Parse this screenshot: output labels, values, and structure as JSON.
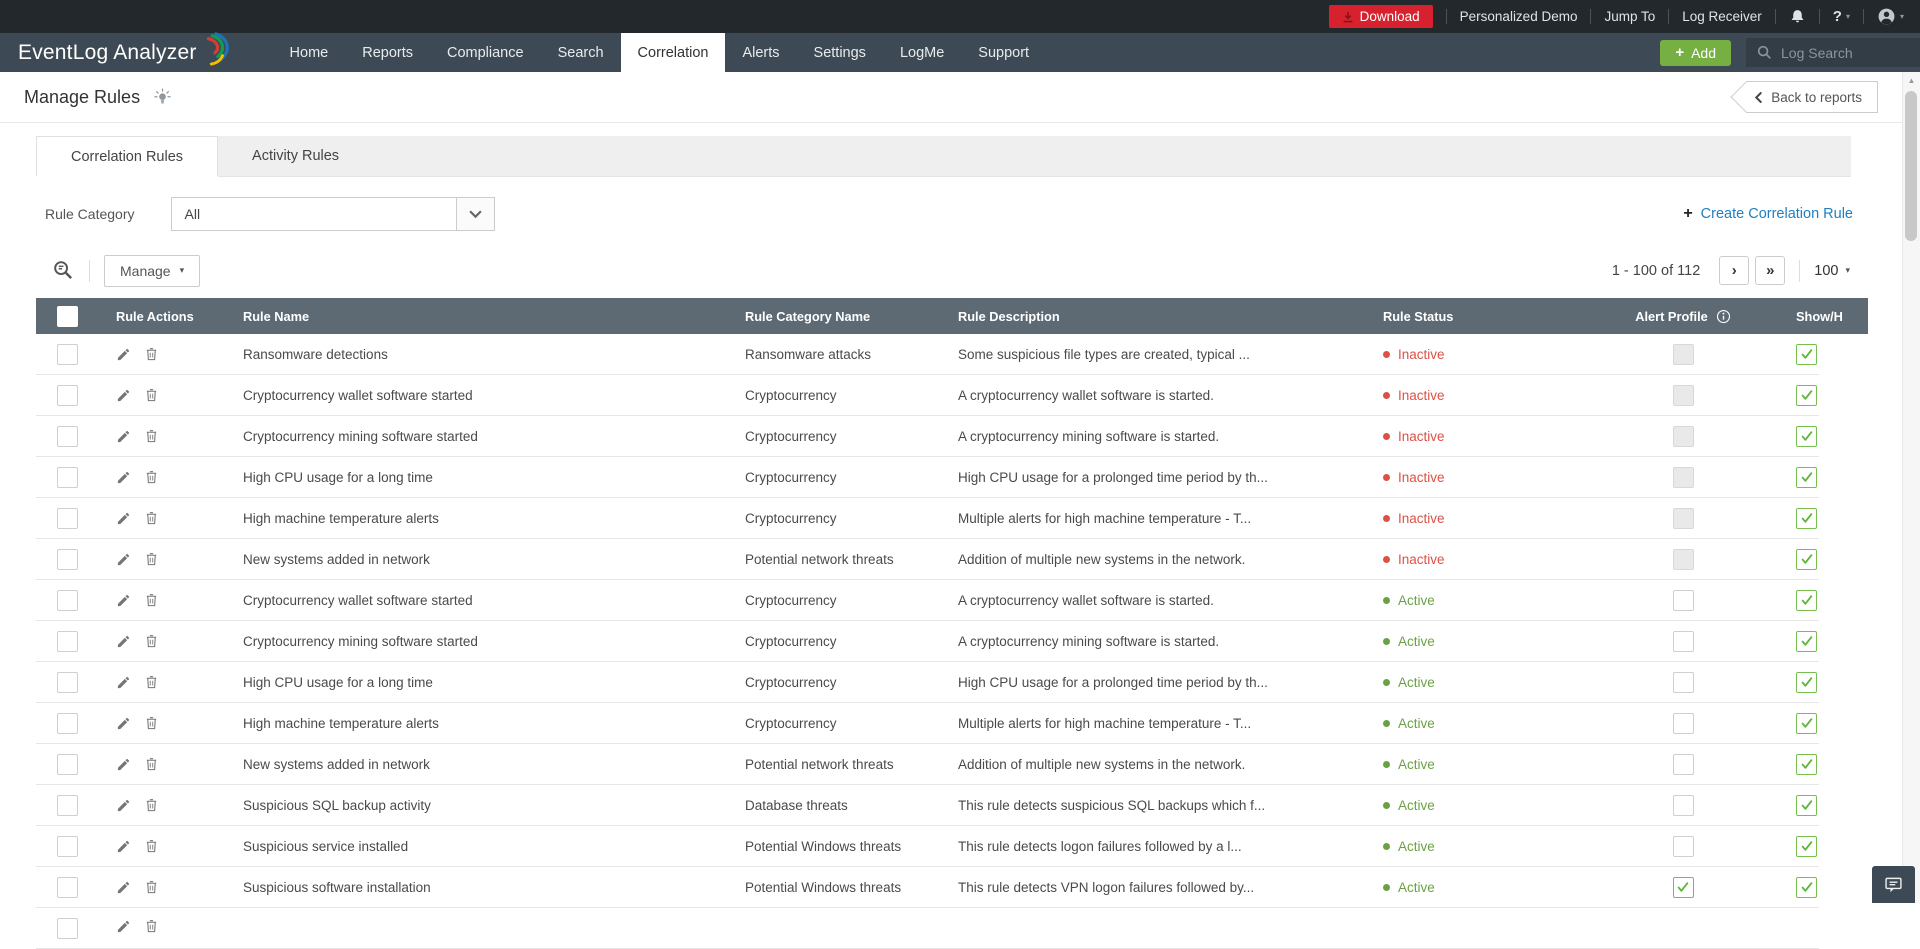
{
  "colors": {
    "topbar_bg": "#23282c",
    "navbar_bg": "#3d4a55",
    "accent_blue": "#1f7fc0",
    "download_red": "#d7212e",
    "add_green": "#76b043",
    "table_header_bg": "#5e6a73",
    "status_active": "#6aa243",
    "status_inactive": "#dd5145",
    "checkbox_green": "#76bf4e"
  },
  "icons": {
    "scroll_up": "▲",
    "caret_down": "▾",
    "next_page": "›",
    "last_page": "»",
    "plus": "+"
  },
  "topbar": {
    "download_label": "Download",
    "links": [
      "Personalized Demo",
      "Jump To",
      "Log Receiver"
    ],
    "help_label": "?"
  },
  "navbar": {
    "brand": "EventLog Analyzer",
    "items": [
      {
        "label": "Home",
        "active": false
      },
      {
        "label": "Reports",
        "active": false
      },
      {
        "label": "Compliance",
        "active": false
      },
      {
        "label": "Search",
        "active": false
      },
      {
        "label": "Correlation",
        "active": true
      },
      {
        "label": "Alerts",
        "active": false
      },
      {
        "label": "Settings",
        "active": false
      },
      {
        "label": "LogMe",
        "active": false
      },
      {
        "label": "Support",
        "active": false
      }
    ],
    "add_label": "Add",
    "search_placeholder": "Log Search"
  },
  "page": {
    "title": "Manage Rules",
    "back_label": "Back to reports"
  },
  "tabs": [
    {
      "label": "Correlation Rules",
      "active": true
    },
    {
      "label": "Activity Rules",
      "active": false
    }
  ],
  "filter": {
    "label": "Rule Category",
    "value": "All",
    "create_label": "Create Correlation Rule"
  },
  "toolbar": {
    "manage_label": "Manage",
    "pagination": "1 - 100 of 112",
    "page_size": "100"
  },
  "table": {
    "columns": [
      "Rule Actions",
      "Rule Name",
      "Rule Category Name",
      "Rule Description",
      "Rule Status",
      "Alert Profile",
      "Show/H"
    ],
    "rows": [
      {
        "name": "Ransomware detections",
        "category": "Ransomware attacks",
        "desc": "Some suspicious file types are created, typical ...",
        "status": "Inactive",
        "alert": "disabled",
        "show": "checked"
      },
      {
        "name": "Cryptocurrency wallet software started",
        "category": "Cryptocurrency",
        "desc": "A cryptocurrency wallet software is started.",
        "status": "Inactive",
        "alert": "disabled",
        "show": "checked"
      },
      {
        "name": "Cryptocurrency mining software started",
        "category": "Cryptocurrency",
        "desc": "A cryptocurrency mining software is started.",
        "status": "Inactive",
        "alert": "disabled",
        "show": "checked"
      },
      {
        "name": "High CPU usage for a long time",
        "category": "Cryptocurrency",
        "desc": "High CPU usage for a prolonged time period by th...",
        "status": "Inactive",
        "alert": "disabled",
        "show": "checked"
      },
      {
        "name": "High machine temperature alerts",
        "category": "Cryptocurrency",
        "desc": "Multiple alerts for high machine temperature - T...",
        "status": "Inactive",
        "alert": "disabled",
        "show": "checked"
      },
      {
        "name": "New systems added in network",
        "category": "Potential network threats",
        "desc": "Addition of multiple new systems in the network.",
        "status": "Inactive",
        "alert": "disabled",
        "show": "checked"
      },
      {
        "name": "Cryptocurrency wallet software started",
        "category": "Cryptocurrency",
        "desc": "A cryptocurrency wallet software is started.",
        "status": "Active",
        "alert": "empty",
        "show": "checked"
      },
      {
        "name": "Cryptocurrency mining software started",
        "category": "Cryptocurrency",
        "desc": "A cryptocurrency mining software is started.",
        "status": "Active",
        "alert": "empty",
        "show": "checked"
      },
      {
        "name": "High CPU usage for a long time",
        "category": "Cryptocurrency",
        "desc": "High CPU usage for a prolonged time period by th...",
        "status": "Active",
        "alert": "empty",
        "show": "checked"
      },
      {
        "name": "High machine temperature alerts",
        "category": "Cryptocurrency",
        "desc": "Multiple alerts for high machine temperature - T...",
        "status": "Active",
        "alert": "empty",
        "show": "checked"
      },
      {
        "name": "New systems added in network",
        "category": "Potential network threats",
        "desc": "Addition of multiple new systems in the network.",
        "status": "Active",
        "alert": "empty",
        "show": "checked"
      },
      {
        "name": "Suspicious SQL backup activity",
        "category": "Database threats",
        "desc": "This rule detects suspicious SQL backups which f...",
        "status": "Active",
        "alert": "empty",
        "show": "checked"
      },
      {
        "name": "Suspicious service installed",
        "category": "Potential Windows threats",
        "desc": "This rule detects logon failures followed by a l...",
        "status": "Active",
        "alert": "empty",
        "show": "checked"
      },
      {
        "name": "Suspicious software installation",
        "category": "Potential Windows threats",
        "desc": "This rule detects VPN logon failures followed by...",
        "status": "Active",
        "alert": "checked",
        "show": "checked"
      }
    ]
  }
}
